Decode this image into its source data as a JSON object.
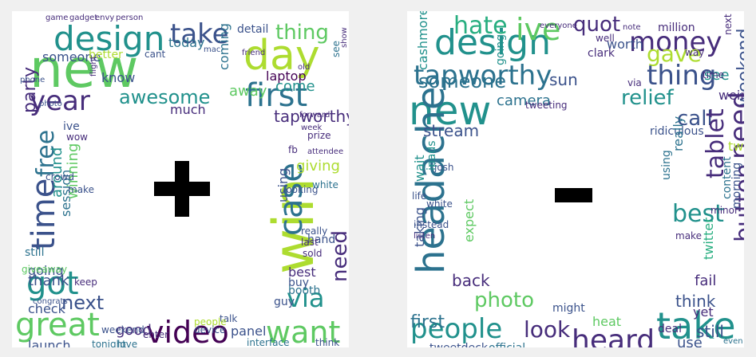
{
  "palette": [
    "#440154",
    "#472d7b",
    "#3b528b",
    "#2c728e",
    "#21918c",
    "#28ae80",
    "#5ec962",
    "#addc30",
    "#fde725"
  ],
  "positive_panel": {
    "symbol": "plus",
    "words": [
      {
        "t": "new",
        "c": "#5ec962"
      },
      {
        "t": "day",
        "c": "#addc30"
      },
      {
        "t": "design",
        "c": "#21918c"
      },
      {
        "t": "take",
        "c": "#3b528b"
      },
      {
        "t": "first",
        "c": "#2c728e"
      },
      {
        "t": "year",
        "c": "#472d7b"
      },
      {
        "t": "awesome",
        "c": "#21918c"
      },
      {
        "t": "time",
        "c": "#3b528b"
      },
      {
        "t": "free",
        "c": "#2c728e"
      },
      {
        "t": "party",
        "c": "#472d7b"
      },
      {
        "t": "thing",
        "c": "#5ec962"
      },
      {
        "t": "win",
        "c": "#addc30"
      },
      {
        "t": "case",
        "c": "#2c728e"
      },
      {
        "t": "got",
        "c": "#21918c"
      },
      {
        "t": "great",
        "c": "#5ec962"
      },
      {
        "t": "video",
        "c": "#440154"
      },
      {
        "t": "want",
        "c": "#5ec962"
      },
      {
        "t": "via",
        "c": "#21918c"
      },
      {
        "t": "next",
        "c": "#3b528b"
      },
      {
        "t": "need",
        "c": "#472d7b"
      },
      {
        "t": "laptop",
        "c": "#440154"
      },
      {
        "t": "come",
        "c": "#21918c"
      },
      {
        "t": "tapworthy",
        "c": "#472d7b"
      },
      {
        "t": "detail",
        "c": "#3b528b"
      },
      {
        "t": "know",
        "c": "#3b528b"
      },
      {
        "t": "today",
        "c": "#2c728e"
      },
      {
        "t": "coming",
        "c": "#2c728e"
      },
      {
        "t": "much",
        "c": "#472d7b"
      },
      {
        "t": "someone",
        "c": "#3b528b"
      },
      {
        "t": "better",
        "c": "#addc30"
      },
      {
        "t": "away",
        "c": "#5ec962"
      },
      {
        "t": "giving",
        "c": "#addc30"
      },
      {
        "t": "using",
        "c": "#3b528b"
      },
      {
        "t": "looking",
        "c": "#3b528b"
      },
      {
        "t": "hand",
        "c": "#3b528b"
      },
      {
        "t": "best",
        "c": "#472d7b"
      },
      {
        "t": "buy",
        "c": "#3b528b"
      },
      {
        "t": "booth",
        "c": "#2c728e"
      },
      {
        "t": "guy",
        "c": "#3b528b"
      },
      {
        "t": "panel",
        "c": "#3b528b"
      },
      {
        "t": "talk",
        "c": "#3b528b"
      },
      {
        "t": "interface",
        "c": "#2c728e"
      },
      {
        "t": "launch",
        "c": "#3b528b"
      },
      {
        "t": "check",
        "c": "#3b528b"
      },
      {
        "t": "good",
        "c": "#472d7b"
      },
      {
        "t": "thank",
        "c": "#3b528b"
      },
      {
        "t": "going",
        "c": "#3b528b"
      },
      {
        "t": "session",
        "c": "#2c728e"
      },
      {
        "t": "around",
        "c": "#21918c"
      },
      {
        "t": "winning",
        "c": "#5ec962"
      },
      {
        "t": "giveaway",
        "c": "#5ec962"
      },
      {
        "t": "still",
        "c": "#2c728e"
      },
      {
        "t": "crowd",
        "c": "#3b528b"
      },
      {
        "t": "make",
        "c": "#3b528b"
      },
      {
        "t": "wow",
        "c": "#472d7b"
      },
      {
        "t": "ive",
        "c": "#3b528b"
      },
      {
        "t": "game",
        "c": "#472d7b"
      },
      {
        "t": "gadget",
        "c": "#472d7b"
      },
      {
        "t": "envy",
        "c": "#472d7b"
      },
      {
        "t": "person",
        "c": "#472d7b"
      },
      {
        "t": "friend",
        "c": "#472d7b"
      },
      {
        "t": "cant",
        "c": "#3b528b"
      },
      {
        "t": "fb",
        "c": "#472d7b"
      },
      {
        "t": "prize",
        "c": "#472d7b"
      },
      {
        "t": "white",
        "c": "#2c728e"
      },
      {
        "t": "sold",
        "c": "#472d7b"
      },
      {
        "t": "last",
        "c": "#472d7b"
      },
      {
        "t": "keep",
        "c": "#472d7b"
      },
      {
        "t": "tonight",
        "c": "#2c728e"
      },
      {
        "t": "love",
        "c": "#2c728e"
      },
      {
        "t": "enter",
        "c": "#472d7b"
      },
      {
        "t": "people",
        "c": "#addc30"
      },
      {
        "t": "device",
        "c": "#3b528b"
      },
      {
        "t": "weekend",
        "c": "#3b528b"
      },
      {
        "t": "think",
        "c": "#3b528b"
      },
      {
        "t": "really",
        "c": "#3b528b"
      },
      {
        "t": "congrats",
        "c": "#3b528b"
      },
      {
        "t": "photo",
        "c": "#3b528b"
      },
      {
        "t": "phone",
        "c": "#3b528b"
      },
      {
        "t": "mac",
        "c": "#3b528b"
      },
      {
        "t": "old",
        "c": "#472d7b"
      },
      {
        "t": "week",
        "c": "#472d7b"
      },
      {
        "t": "forward",
        "c": "#472d7b"
      },
      {
        "t": "attendee",
        "c": "#472d7b"
      },
      {
        "t": "flight",
        "c": "#472d7b"
      },
      {
        "t": "see",
        "c": "#2c728e"
      },
      {
        "t": "show",
        "c": "#472d7b"
      }
    ]
  },
  "negative_panel": {
    "symbol": "minus",
    "words": [
      {
        "t": "design",
        "c": "#21918c"
      },
      {
        "t": "new",
        "c": "#21918c"
      },
      {
        "t": "tapworthy",
        "c": "#2c728e"
      },
      {
        "t": "headache",
        "c": "#2c728e"
      },
      {
        "t": "people",
        "c": "#21918c"
      },
      {
        "t": "hate",
        "c": "#28ae80"
      },
      {
        "t": "ive",
        "c": "#5ec962"
      },
      {
        "t": "quot",
        "c": "#472d7b"
      },
      {
        "t": "money",
        "c": "#472d7b"
      },
      {
        "t": "gave",
        "c": "#addc30"
      },
      {
        "t": "thing",
        "c": "#3b528b"
      },
      {
        "t": "weekend",
        "c": "#3b528b"
      },
      {
        "t": "relief",
        "c": "#21918c"
      },
      {
        "t": "call",
        "c": "#3b528b"
      },
      {
        "t": "need",
        "c": "#472d7b"
      },
      {
        "t": "tablet",
        "c": "#472d7b"
      },
      {
        "t": "button",
        "c": "#472d7b"
      },
      {
        "t": "best",
        "c": "#21918c"
      },
      {
        "t": "take",
        "c": "#21918c"
      },
      {
        "t": "heard",
        "c": "#472d7b"
      },
      {
        "t": "look",
        "c": "#472d7b"
      },
      {
        "t": "someone",
        "c": "#2c728e"
      },
      {
        "t": "sun",
        "c": "#3b528b"
      },
      {
        "t": "camera",
        "c": "#2c728e"
      },
      {
        "t": "stream",
        "c": "#3b528b"
      },
      {
        "t": "back",
        "c": "#472d7b"
      },
      {
        "t": "photo",
        "c": "#5ec962"
      },
      {
        "t": "first",
        "c": "#2c728e"
      },
      {
        "t": "think",
        "c": "#3b528b"
      },
      {
        "t": "use",
        "c": "#3b528b"
      },
      {
        "t": "still",
        "c": "#3b528b"
      },
      {
        "t": "official",
        "c": "#2c728e"
      },
      {
        "t": "tweetdeck",
        "c": "#3b528b"
      },
      {
        "t": "wait",
        "c": "#21918c"
      },
      {
        "t": "ipads",
        "c": "#21918c"
      },
      {
        "t": "taking",
        "c": "#3b528b"
      },
      {
        "t": "expect",
        "c": "#5ec962"
      },
      {
        "t": "cashmore",
        "c": "#21918c"
      },
      {
        "t": "going",
        "c": "#21918c"
      },
      {
        "t": "million",
        "c": "#472d7b"
      },
      {
        "t": "worth",
        "c": "#3b528b"
      },
      {
        "t": "see",
        "c": "#21918c"
      },
      {
        "t": "ridiculous",
        "c": "#3b528b"
      },
      {
        "t": "morning",
        "c": "#3b528b"
      },
      {
        "t": "content",
        "c": "#2c728e"
      },
      {
        "t": "twitter",
        "c": "#28ae80"
      },
      {
        "t": "fail",
        "c": "#472d7b"
      },
      {
        "t": "yet",
        "c": "#472d7b"
      },
      {
        "t": "deal",
        "c": "#472d7b"
      },
      {
        "t": "heat",
        "c": "#5ec962"
      },
      {
        "t": "might",
        "c": "#3b528b"
      },
      {
        "t": "everyone",
        "c": "#472d7b"
      },
      {
        "t": "josh",
        "c": "#3b528b"
      },
      {
        "t": "white",
        "c": "#3b528b"
      },
      {
        "t": "life",
        "c": "#3b528b"
      },
      {
        "t": "instead",
        "c": "#3b528b"
      },
      {
        "t": "clark",
        "c": "#472d7b"
      },
      {
        "t": "using",
        "c": "#2c728e"
      },
      {
        "t": "really",
        "c": "#2c728e"
      },
      {
        "t": "minor",
        "c": "#472d7b"
      },
      {
        "t": "make",
        "c": "#472d7b"
      },
      {
        "t": "tweeting",
        "c": "#472d7b"
      },
      {
        "t": "two",
        "c": "#addc30"
      },
      {
        "t": "weird",
        "c": "#472d7b"
      },
      {
        "t": "even",
        "c": "#2c728e"
      },
      {
        "t": "note",
        "c": "#472d7b"
      },
      {
        "t": "well",
        "c": "#472d7b"
      },
      {
        "t": "way",
        "c": "#472d7b"
      },
      {
        "t": "time",
        "c": "#472d7b"
      },
      {
        "t": "next",
        "c": "#472d7b"
      },
      {
        "t": "via",
        "c": "#472d7b"
      },
      {
        "t": "listen",
        "c": "#472d7b"
      }
    ]
  }
}
